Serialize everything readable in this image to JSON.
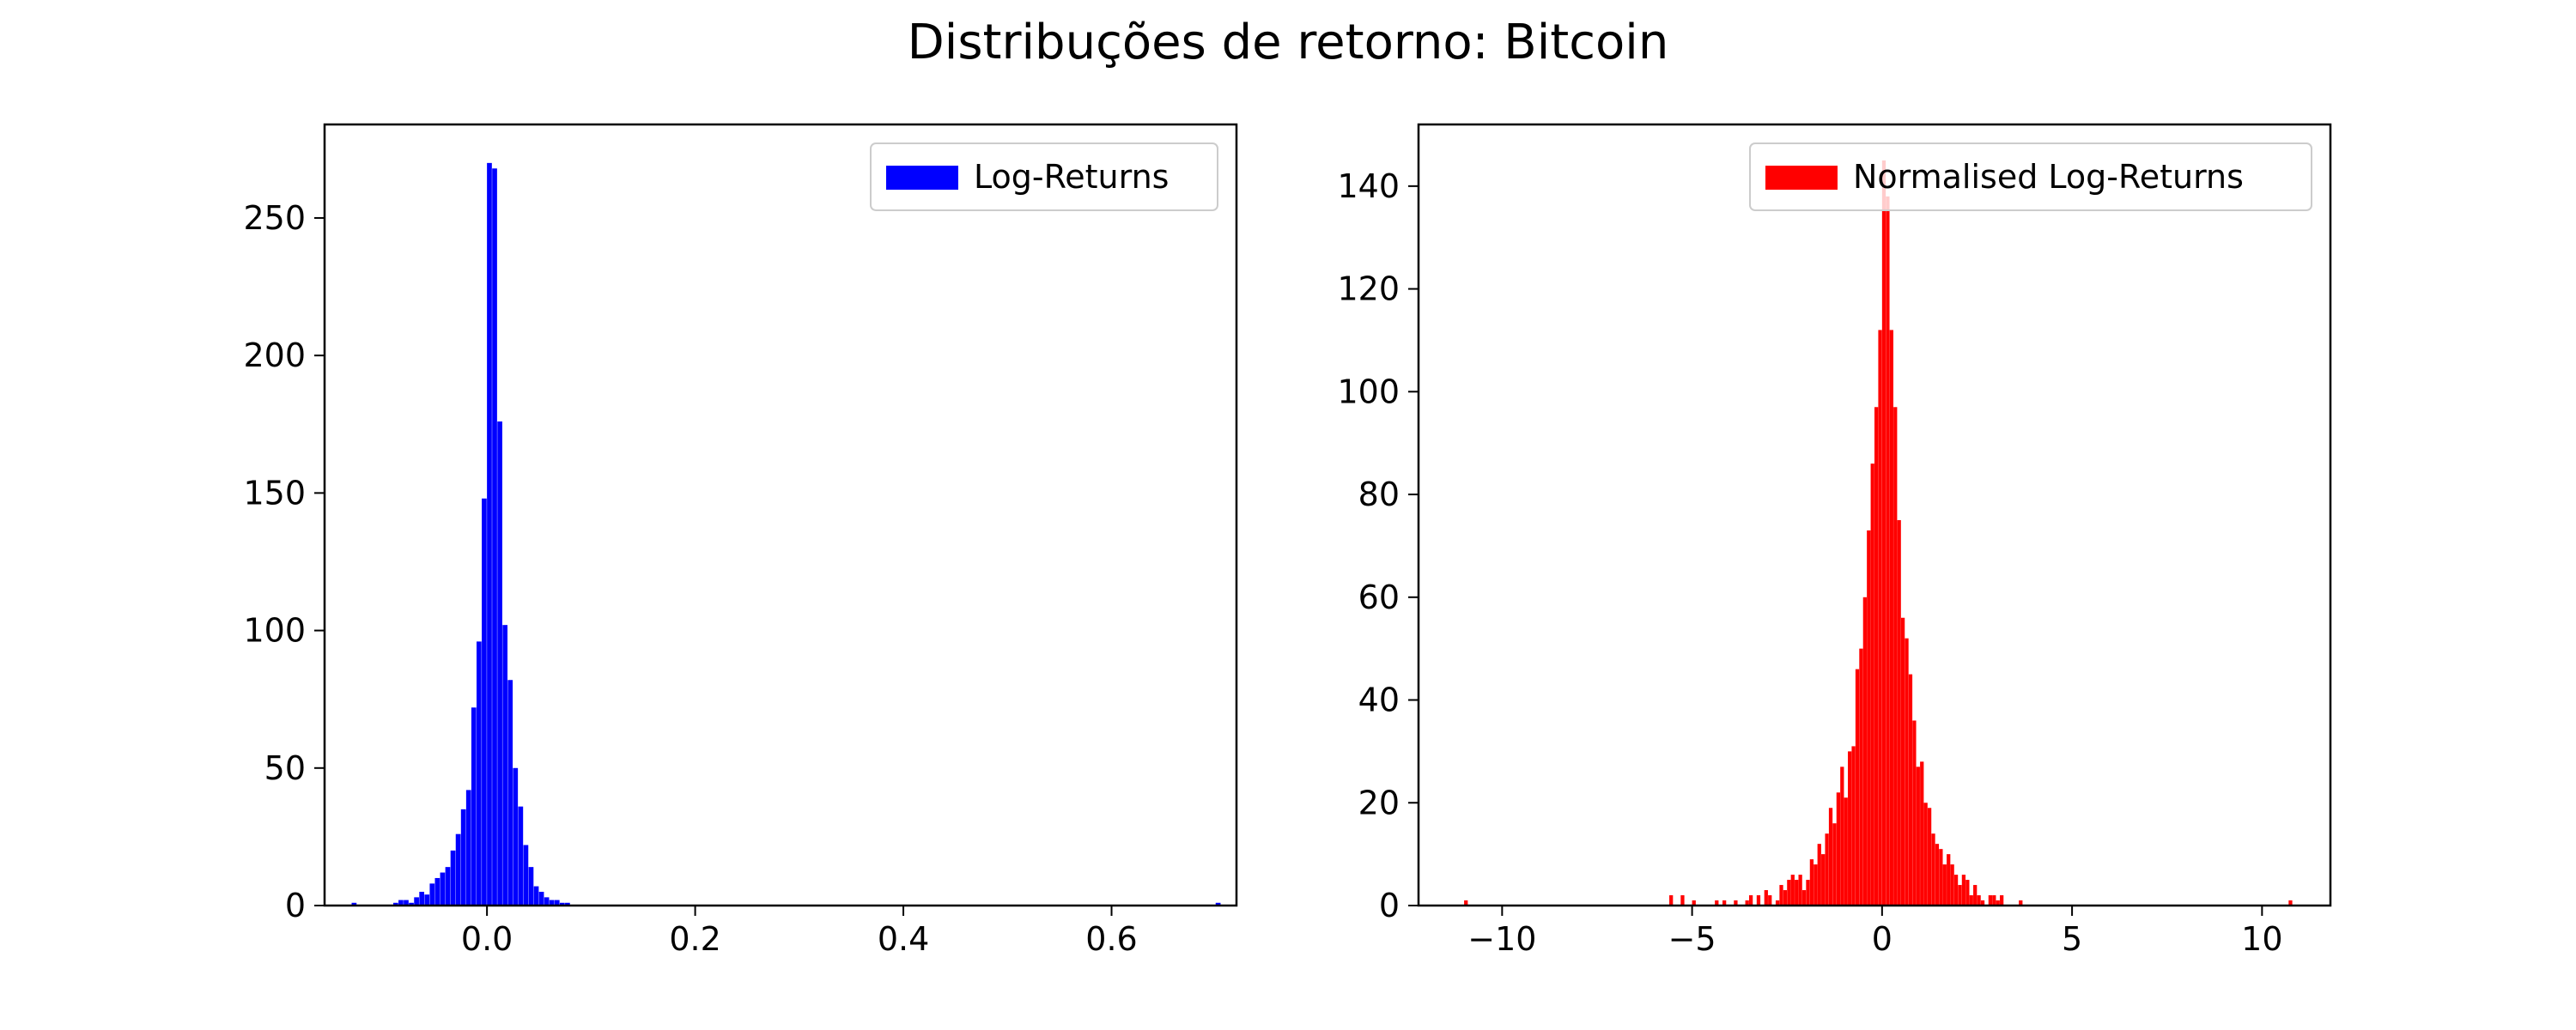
{
  "figure": {
    "title": "Distribuções de retorno: Bitcoin"
  },
  "chart_data": [
    {
      "type": "bar",
      "subtype": "histogram",
      "color": "#0000ff",
      "legend": {
        "label": "Log-Returns",
        "placement": "upper-right"
      },
      "xlim": [
        -0.156,
        0.72
      ],
      "ylim": [
        0,
        284
      ],
      "xticks": [
        0.0,
        0.2,
        0.4,
        0.6
      ],
      "xtick_labels": [
        "0.0",
        "0.2",
        "0.4",
        "0.6"
      ],
      "yticks": [
        0,
        50,
        100,
        150,
        200,
        250
      ],
      "ytick_labels": [
        "0",
        "50",
        "100",
        "150",
        "200",
        "250"
      ],
      "bins": [
        [
          -0.13,
          1
        ],
        [
          -0.09,
          1
        ],
        [
          -0.085,
          2
        ],
        [
          -0.08,
          2
        ],
        [
          -0.075,
          1
        ],
        [
          -0.07,
          3
        ],
        [
          -0.065,
          5
        ],
        [
          -0.06,
          4
        ],
        [
          -0.055,
          8
        ],
        [
          -0.05,
          10
        ],
        [
          -0.045,
          12
        ],
        [
          -0.04,
          14
        ],
        [
          -0.035,
          20
        ],
        [
          -0.03,
          26
        ],
        [
          -0.025,
          35
        ],
        [
          -0.02,
          42
        ],
        [
          -0.015,
          72
        ],
        [
          -0.01,
          96
        ],
        [
          -0.005,
          148
        ],
        [
          0.0,
          270
        ],
        [
          0.005,
          268
        ],
        [
          0.01,
          176
        ],
        [
          0.015,
          102
        ],
        [
          0.02,
          82
        ],
        [
          0.025,
          50
        ],
        [
          0.03,
          36
        ],
        [
          0.035,
          22
        ],
        [
          0.04,
          14
        ],
        [
          0.045,
          7
        ],
        [
          0.05,
          5
        ],
        [
          0.055,
          3
        ],
        [
          0.06,
          2
        ],
        [
          0.065,
          2
        ],
        [
          0.07,
          1
        ],
        [
          0.075,
          1
        ],
        [
          0.7,
          1
        ]
      ],
      "bin_width": 0.0047
    },
    {
      "type": "bar",
      "subtype": "histogram",
      "color": "#ff0000",
      "legend": {
        "label": "Normalised Log-Returns",
        "placement": "upper-right"
      },
      "xlim": [
        -12.2,
        11.8
      ],
      "ylim": [
        0,
        152
      ],
      "xticks": [
        -10,
        -5,
        0,
        5,
        10
      ],
      "xtick_labels": [
        "−10",
        "−5",
        "0",
        "5",
        "10"
      ],
      "yticks": [
        0,
        20,
        40,
        60,
        80,
        100,
        120,
        140
      ],
      "ytick_labels": [
        "0",
        "20",
        "40",
        "60",
        "80",
        "100",
        "120",
        "140"
      ],
      "bins": [
        [
          -11.0,
          1
        ],
        [
          -5.6,
          2
        ],
        [
          -5.3,
          2
        ],
        [
          -5.0,
          1
        ],
        [
          -4.4,
          1
        ],
        [
          -4.2,
          1
        ],
        [
          -3.9,
          1
        ],
        [
          -3.6,
          1
        ],
        [
          -3.5,
          2
        ],
        [
          -3.3,
          2
        ],
        [
          -3.1,
          3
        ],
        [
          -3.0,
          2
        ],
        [
          -2.8,
          1
        ],
        [
          -2.7,
          4
        ],
        [
          -2.6,
          3
        ],
        [
          -2.5,
          5
        ],
        [
          -2.4,
          6
        ],
        [
          -2.3,
          5
        ],
        [
          -2.2,
          6
        ],
        [
          -2.1,
          3
        ],
        [
          -2.0,
          5
        ],
        [
          -1.9,
          9
        ],
        [
          -1.8,
          8
        ],
        [
          -1.7,
          12
        ],
        [
          -1.6,
          10
        ],
        [
          -1.5,
          14
        ],
        [
          -1.4,
          19
        ],
        [
          -1.3,
          16
        ],
        [
          -1.2,
          22
        ],
        [
          -1.1,
          27
        ],
        [
          -1.0,
          21
        ],
        [
          -0.9,
          30
        ],
        [
          -0.8,
          31
        ],
        [
          -0.7,
          46
        ],
        [
          -0.6,
          50
        ],
        [
          -0.5,
          60
        ],
        [
          -0.4,
          73
        ],
        [
          -0.3,
          86
        ],
        [
          -0.2,
          97
        ],
        [
          -0.1,
          112
        ],
        [
          0.0,
          145
        ],
        [
          0.1,
          138
        ],
        [
          0.2,
          112
        ],
        [
          0.3,
          97
        ],
        [
          0.4,
          75
        ],
        [
          0.5,
          56
        ],
        [
          0.6,
          52
        ],
        [
          0.7,
          45
        ],
        [
          0.8,
          36
        ],
        [
          0.9,
          27
        ],
        [
          1.0,
          28
        ],
        [
          1.1,
          20
        ],
        [
          1.2,
          19
        ],
        [
          1.3,
          14
        ],
        [
          1.4,
          12
        ],
        [
          1.5,
          11
        ],
        [
          1.6,
          8
        ],
        [
          1.7,
          10
        ],
        [
          1.8,
          8
        ],
        [
          1.9,
          6
        ],
        [
          2.0,
          4
        ],
        [
          2.1,
          6
        ],
        [
          2.2,
          5
        ],
        [
          2.3,
          2
        ],
        [
          2.4,
          4
        ],
        [
          2.5,
          2
        ],
        [
          2.6,
          1
        ],
        [
          2.8,
          2
        ],
        [
          2.9,
          2
        ],
        [
          3.0,
          1
        ],
        [
          3.1,
          2
        ],
        [
          3.6,
          1
        ],
        [
          10.7,
          1
        ]
      ],
      "bin_width": 0.0965
    }
  ]
}
